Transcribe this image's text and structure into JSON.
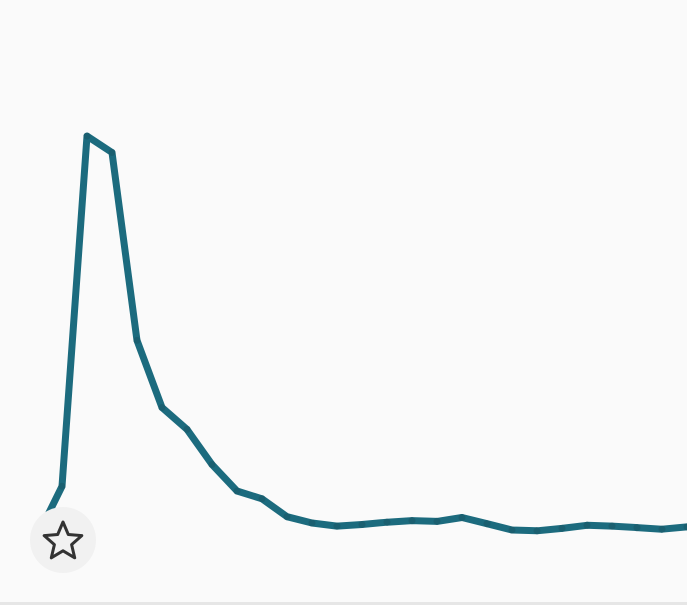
{
  "chart_data": {
    "type": "line",
    "title": "",
    "xlabel": "",
    "ylabel": "",
    "x": [
      0,
      1,
      2,
      3,
      4,
      5,
      6,
      7,
      8,
      9,
      10,
      11,
      12,
      13,
      14,
      15,
      16,
      17,
      18,
      19,
      20,
      21,
      22,
      23,
      24,
      25,
      26
    ],
    "series": [
      {
        "values": [
          5.0,
          11.5,
          56.4,
          54.3,
          30.2,
          21.6,
          18.8,
          14.3,
          10.9,
          9.9,
          7.6,
          6.8,
          6.4,
          6.6,
          6.9,
          7.1,
          7.0,
          7.5,
          6.7,
          5.9,
          5.8,
          6.1,
          6.5,
          6.4,
          6.2,
          6.0,
          6.3
        ],
        "color": "#1c6b7e"
      }
    ],
    "ylim": [
      0,
      70
    ],
    "grid": false,
    "legend": "none"
  },
  "controls": {
    "favorite_icon": "star-outline-icon",
    "favorite_active": false
  },
  "colors": {
    "background": "#fafafa",
    "line": "#1c6b7e",
    "point": "#1a5f70",
    "button_bg": "#f1f1f1",
    "icon": "#333333"
  }
}
